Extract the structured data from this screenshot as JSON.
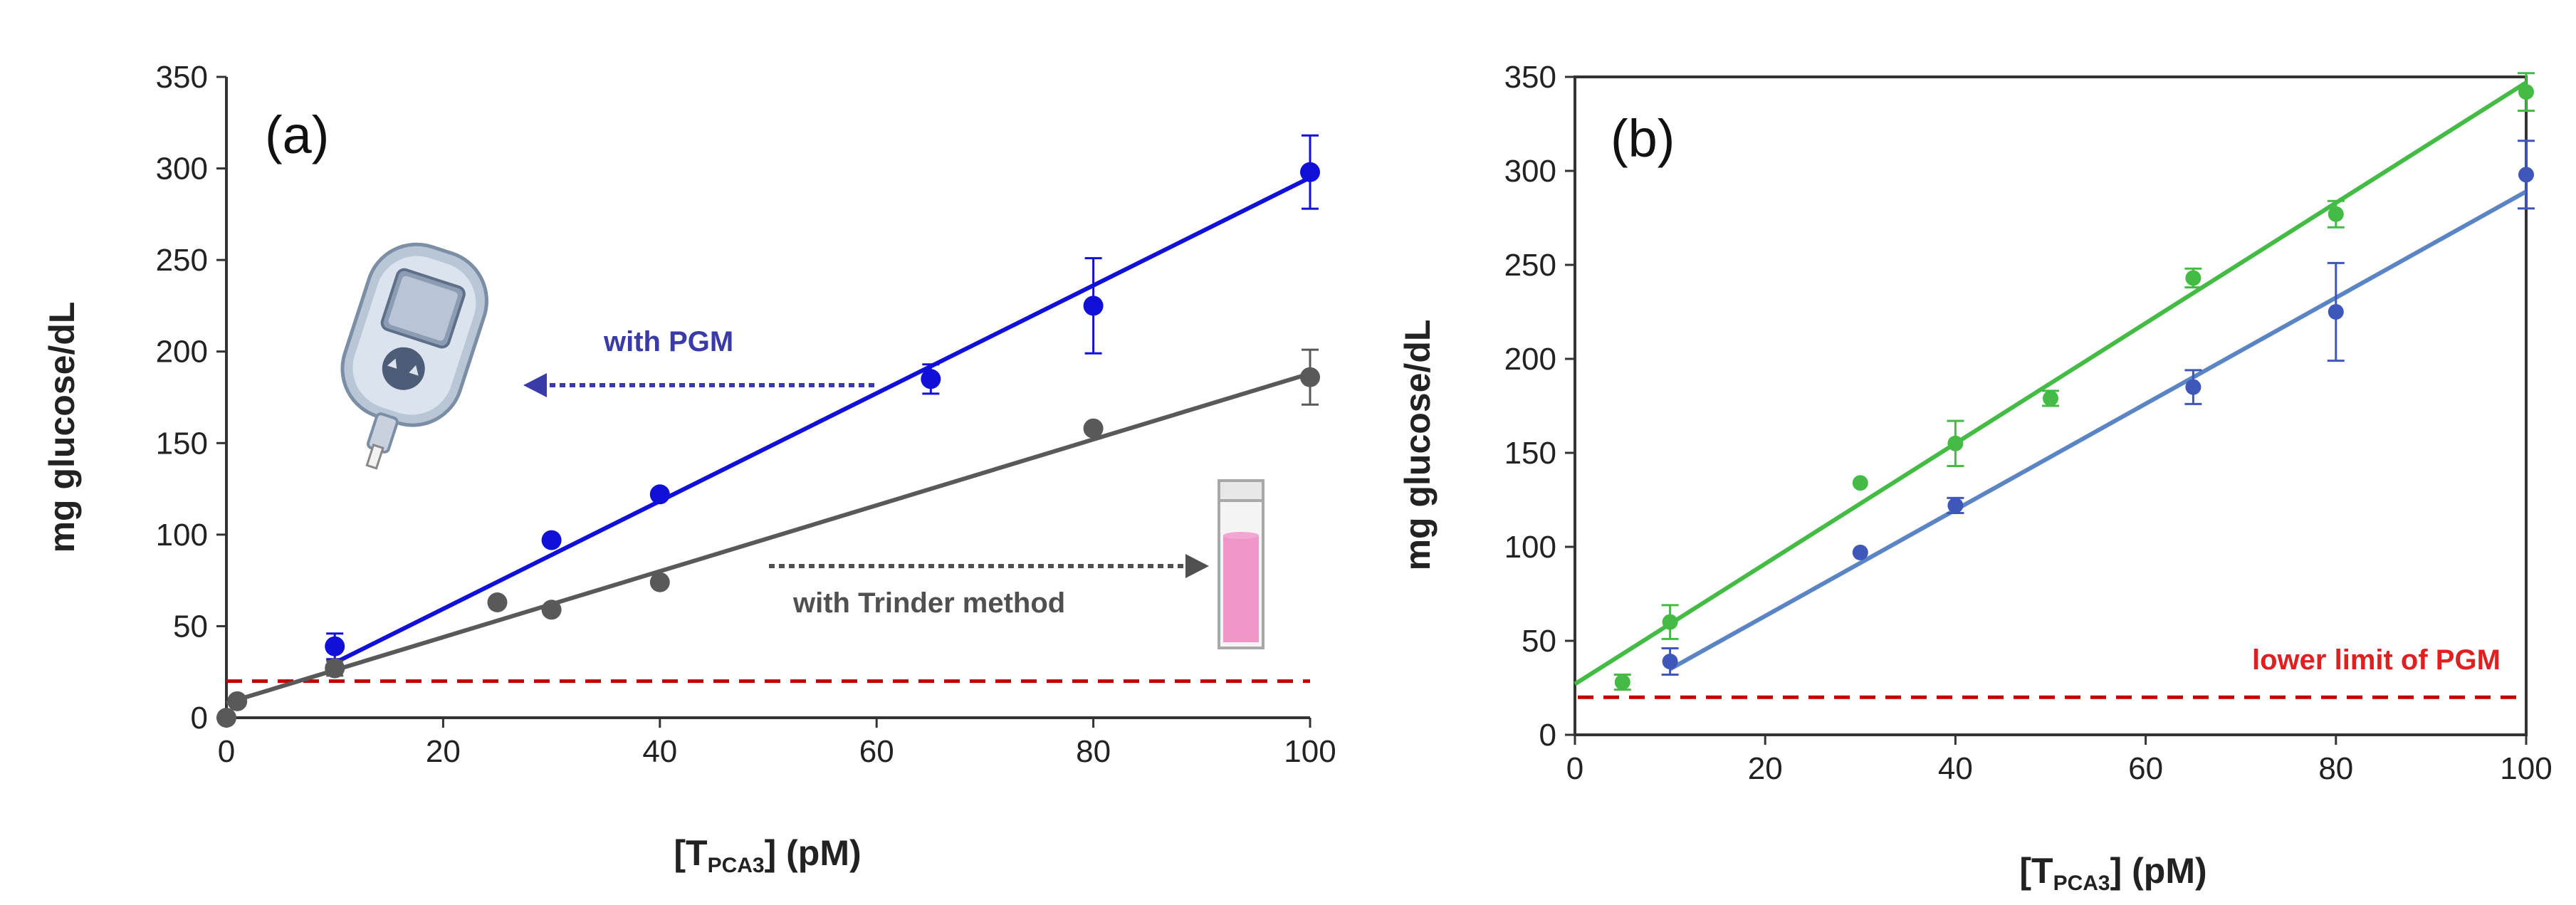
{
  "chart_data": [
    {
      "type": "scatter",
      "panel_label": "(a)",
      "xlabel_prefix": "[T",
      "xlabel_sub": "PCA3",
      "xlabel_suffix": "] (pM)",
      "ylabel": "mg glucose/dL",
      "xlim": [
        0,
        100
      ],
      "ylim": [
        0,
        350
      ],
      "xticks": [
        0,
        20,
        40,
        60,
        80,
        100
      ],
      "yticks": [
        0,
        50,
        100,
        150,
        200,
        250,
        300,
        350
      ],
      "series": [
        {
          "name": "with PGM",
          "color": "#1010d8",
          "x": [
            10,
            30,
            40,
            65,
            80,
            100
          ],
          "y": [
            39,
            97,
            122,
            185,
            225,
            298
          ],
          "err": [
            7,
            0,
            0,
            8,
            26,
            20
          ],
          "fit": {
            "x": [
              10,
              100
            ],
            "y": [
              30,
              295
            ]
          }
        },
        {
          "name": "with Trinder method",
          "color": "#595959",
          "x": [
            0,
            1,
            10,
            25,
            30,
            40,
            80,
            100
          ],
          "y": [
            0,
            9,
            27,
            63,
            59,
            74,
            158,
            186
          ],
          "err": [
            0,
            0,
            4,
            0,
            0,
            0,
            0,
            15
          ],
          "fit": {
            "x": [
              0,
              100
            ],
            "y": [
              8,
              188
            ]
          }
        }
      ],
      "hline": {
        "y": 20,
        "color": "#c00000"
      },
      "annotations": [
        {
          "text": "with PGM",
          "color": "#3a3aa8"
        },
        {
          "text": "with Trinder method",
          "color": "#505050"
        }
      ]
    },
    {
      "type": "scatter",
      "panel_label": "(b)",
      "xlabel_prefix": "[T",
      "xlabel_sub": "PCA3",
      "xlabel_suffix": "] (pM)",
      "ylabel": "mg glucose/dL",
      "xlim": [
        0,
        100
      ],
      "ylim": [
        0,
        350
      ],
      "xticks": [
        0,
        20,
        40,
        60,
        80,
        100
      ],
      "yticks": [
        0,
        50,
        100,
        150,
        200,
        250,
        300,
        350
      ],
      "series": [
        {
          "name": "green",
          "color": "#44bb44",
          "x": [
            5,
            10,
            30,
            40,
            50,
            65,
            80,
            100
          ],
          "y": [
            28,
            60,
            134,
            155,
            179,
            243,
            277,
            342
          ],
          "err": [
            4,
            9,
            0,
            12,
            4,
            5,
            7,
            10
          ],
          "fit": {
            "x": [
              0,
              100
            ],
            "y": [
              27,
              347
            ]
          }
        },
        {
          "name": "blue",
          "color": "#3e57b8",
          "fit_color": "#5b84c4",
          "x": [
            10,
            30,
            40,
            65,
            80,
            100
          ],
          "y": [
            39,
            97,
            122,
            185,
            225,
            298
          ],
          "err": [
            7,
            0,
            4,
            9,
            26,
            18
          ],
          "fit": {
            "x": [
              10,
              100
            ],
            "y": [
              35,
              289
            ]
          }
        }
      ],
      "hline": {
        "y": 20,
        "color": "#c00000"
      },
      "annotations": [
        {
          "text": "lower limit of PGM",
          "color": "#e02020"
        }
      ]
    }
  ]
}
